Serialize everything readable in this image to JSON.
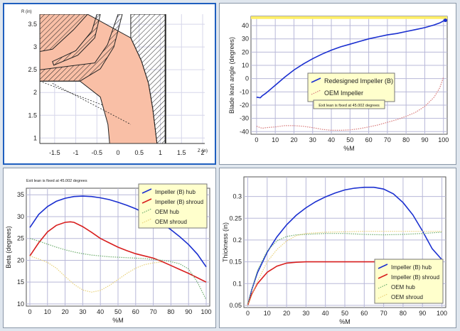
{
  "colors": {
    "hub": "#1a2fd0",
    "shroud": "#d81e1e",
    "oem_hub": "#6fae6f",
    "oem_shroud": "#e9d27a",
    "oem_lean": "#d87a7a",
    "grid": "#b8b8d8",
    "legend_bg": "#ffffcc",
    "meridional_fill": "#f9bfa6",
    "ref_band": "#ffee66"
  },
  "chart_data": [
    {
      "id": "meridional",
      "type": "scatter",
      "x_ticks": [
        "-1.5",
        "-1",
        "-0.5",
        "0",
        "0.5",
        "1",
        "1.5",
        "2"
      ],
      "y_ticks": [
        "1",
        "1.5",
        "2",
        "2.5",
        "3",
        "3.5"
      ],
      "xlabel": "Z (in)",
      "ylabel": "R (in)",
      "xlim": [
        -1.85,
        2.05
      ],
      "ylim": [
        0.88,
        3.72
      ],
      "regions": [
        {
          "name": "flow_passage",
          "fill": true,
          "points": [
            [
              -1.85,
              3.72
            ],
            [
              -0.72,
              3.72
            ],
            [
              0.3,
              3.2
            ],
            [
              0.55,
              2.7
            ],
            [
              0.72,
              2.2
            ],
            [
              0.82,
              1.65
            ],
            [
              0.92,
              0.88
            ],
            [
              -0.2,
              0.88
            ],
            [
              -0.24,
              1.3
            ],
            [
              -0.42,
              1.9
            ],
            [
              -0.9,
              2.25
            ],
            [
              -1.85,
              2.25
            ]
          ]
        },
        {
          "name": "shroud_hatch_outer",
          "fill": false,
          "points": [
            [
              -1.85,
              3.72
            ],
            [
              -0.72,
              3.72
            ],
            [
              -1.05,
              3.38
            ],
            [
              -1.55,
              2.95
            ],
            [
              -1.85,
              2.9
            ]
          ]
        },
        {
          "name": "splitter_hatch",
          "fill": false,
          "points": [
            [
              -0.5,
              3.72
            ],
            [
              -0.62,
              3.35
            ],
            [
              -1.0,
              2.92
            ],
            [
              -1.55,
              2.68
            ],
            [
              -1.52,
              2.6
            ],
            [
              -0.95,
              2.82
            ],
            [
              -0.55,
              3.2
            ],
            [
              -0.42,
              3.72
            ]
          ]
        },
        {
          "name": "hub_hatch",
          "fill": false,
          "points": [
            [
              -1.85,
              2.25
            ],
            [
              -0.9,
              2.25
            ],
            [
              -0.42,
              2.52
            ],
            [
              -0.1,
              3.0
            ],
            [
              0.1,
              3.72
            ],
            [
              0.0,
              3.72
            ],
            [
              -0.25,
              3.05
            ],
            [
              -0.55,
              2.65
            ],
            [
              -1.85,
              2.5
            ]
          ]
        },
        {
          "name": "casing_hatch",
          "fill": false,
          "points": [
            [
              0.3,
              3.2
            ],
            [
              0.55,
              2.7
            ],
            [
              0.72,
              2.2
            ],
            [
              0.82,
              1.65
            ],
            [
              0.92,
              0.88
            ],
            [
              1.12,
              0.88
            ],
            [
              1.12,
              3.72
            ],
            [
              0.3,
              3.72
            ]
          ]
        }
      ],
      "lines": [
        {
          "name": "trailing_edge_dashed",
          "points": [
            [
              -1.85,
              2.25
            ],
            [
              -0.35,
              1.72
            ]
          ]
        },
        {
          "name": "leading_edge_dashed",
          "points": [
            [
              -1.55,
              2.2
            ],
            [
              0.3,
              1.3
            ]
          ]
        },
        {
          "name": "exit_vertical",
          "points": [
            [
              1.12,
              0.88
            ],
            [
              1.12,
              3.72
            ]
          ]
        }
      ]
    },
    {
      "id": "blade_lean",
      "type": "line",
      "xlabel": "%M",
      "ylabel": "Blade lean angle (degrees)",
      "xlim": [
        -3,
        102
      ],
      "ylim": [
        -42,
        47
      ],
      "x_ticks": [
        "0",
        "10",
        "20",
        "30",
        "40",
        "50",
        "60",
        "70",
        "80",
        "90",
        "100"
      ],
      "y_ticks": [
        "-40",
        "-30",
        "-20",
        "-10",
        "0",
        "10",
        "20",
        "30",
        "40"
      ],
      "reference_band": [
        45,
        47
      ],
      "annotation": "Exit lean is fixed at 45.002 degrees",
      "series": [
        {
          "name": "Redesigned Impeller (B)",
          "color_key": "hub",
          "style": "solid",
          "x": [
            0,
            2,
            3,
            5,
            10,
            15,
            20,
            25,
            30,
            35,
            40,
            45,
            50,
            55,
            60,
            65,
            70,
            75,
            80,
            85,
            90,
            95,
            98,
            100,
            101
          ],
          "y": [
            -14,
            -14.5,
            -13,
            -11,
            -5,
            1,
            6.5,
            11,
            15,
            18.5,
            21.5,
            24,
            26,
            28,
            30,
            31.5,
            33,
            34,
            35.5,
            37,
            38.5,
            40.5,
            42,
            43.5,
            44
          ]
        },
        {
          "name": "OEM Impeller",
          "color_key": "oem_lean",
          "style": "dotted",
          "x": [
            0,
            3,
            5,
            10,
            15,
            20,
            25,
            30,
            35,
            40,
            45,
            50,
            55,
            60,
            65,
            70,
            75,
            80,
            85,
            90,
            95,
            98,
            100
          ],
          "y": [
            -36,
            -37.5,
            -37,
            -36.5,
            -35.5,
            -35.5,
            -36,
            -37,
            -38.3,
            -39,
            -39,
            -38.7,
            -37.8,
            -36.5,
            -35,
            -33,
            -31,
            -28.5,
            -25.5,
            -21,
            -14,
            -7,
            1
          ]
        }
      ]
    },
    {
      "id": "beta",
      "type": "line",
      "xlabel": "%M",
      "ylabel": "Beta (degrees)",
      "xlim": [
        -2,
        102
      ],
      "ylim": [
        9.5,
        36.5
      ],
      "x_ticks": [
        "0",
        "10",
        "20",
        "30",
        "40",
        "50",
        "60",
        "70",
        "80",
        "90",
        "100"
      ],
      "y_ticks": [
        "10",
        "15",
        "20",
        "25",
        "30",
        "35"
      ],
      "annotation": "Exit lean is fixed at 45.002 degrees",
      "series": [
        {
          "name": "Impeller (B) hub",
          "color_key": "hub",
          "style": "solid",
          "x": [
            0,
            5,
            10,
            15,
            20,
            25,
            30,
            35,
            40,
            45,
            50,
            55,
            60,
            65,
            70,
            75,
            80,
            85,
            90,
            95,
            100
          ],
          "y": [
            27.5,
            30.5,
            32.3,
            33.5,
            34.2,
            34.6,
            34.7,
            34.6,
            34.3,
            33.9,
            33.3,
            32.6,
            31.8,
            30.8,
            29.7,
            28.4,
            27.0,
            25.4,
            23.6,
            21.4,
            18.5
          ]
        },
        {
          "name": "Impeller (B) shroud",
          "color_key": "shroud",
          "style": "solid",
          "x": [
            0,
            5,
            10,
            15,
            20,
            23,
            25,
            30,
            35,
            40,
            45,
            50,
            55,
            60,
            65,
            70,
            75,
            80,
            85,
            90,
            95,
            100
          ],
          "y": [
            21,
            24,
            26.5,
            28,
            28.7,
            28.8,
            28.7,
            27.7,
            26.4,
            25,
            24,
            23,
            22.2,
            21.5,
            21,
            20.5,
            19.7,
            18.8,
            17.9,
            17,
            16,
            15
          ]
        },
        {
          "name": "OEM hub",
          "color_key": "oem_hub",
          "style": "dotted",
          "x": [
            0,
            5,
            10,
            15,
            20,
            25,
            30,
            35,
            40,
            45,
            50,
            55,
            60,
            65,
            70,
            75,
            80,
            85,
            90,
            95,
            100
          ],
          "y": [
            25,
            24.4,
            23.7,
            23,
            22.4,
            21.9,
            21.5,
            21.2,
            21,
            20.8,
            20.7,
            20.6,
            20.5,
            20.4,
            20.2,
            20,
            19.7,
            19.2,
            18,
            15,
            11
          ]
        },
        {
          "name": "OEM shroud",
          "color_key": "oem_shroud",
          "style": "dotted",
          "x": [
            0,
            5,
            10,
            15,
            20,
            25,
            30,
            35,
            40,
            45,
            50,
            55,
            60,
            65,
            70,
            75
          ],
          "y": [
            21,
            20.3,
            19.5,
            18.2,
            16.3,
            14.5,
            13.2,
            12.7,
            13.1,
            14.2,
            15.6,
            17,
            18.2,
            19,
            19.4,
            19.6
          ]
        }
      ]
    },
    {
      "id": "thickness",
      "type": "line",
      "xlabel": "%M",
      "ylabel": "Thickness (in)",
      "xlim": [
        -2,
        102
      ],
      "ylim": [
        0.045,
        0.345
      ],
      "x_ticks": [
        "0",
        "10",
        "20",
        "30",
        "40",
        "50",
        "60",
        "70",
        "80",
        "90",
        "100"
      ],
      "y_ticks": [
        "0.05",
        "0.1",
        "0.15",
        "0.2",
        "0.25",
        "0.3"
      ],
      "series": [
        {
          "name": "Impeller (B) hub",
          "color_key": "hub",
          "style": "solid",
          "x": [
            0,
            2,
            5,
            10,
            15,
            20,
            25,
            30,
            35,
            40,
            45,
            50,
            55,
            60,
            65,
            70,
            75,
            80,
            85,
            90,
            95,
            100
          ],
          "y": [
            0.05,
            0.085,
            0.125,
            0.172,
            0.207,
            0.235,
            0.257,
            0.274,
            0.288,
            0.299,
            0.308,
            0.315,
            0.319,
            0.321,
            0.321,
            0.317,
            0.306,
            0.286,
            0.258,
            0.221,
            0.18,
            0.155
          ]
        },
        {
          "name": "Impeller (B) shroud",
          "color_key": "shroud",
          "style": "solid",
          "x": [
            0,
            2,
            5,
            10,
            15,
            20,
            25,
            30,
            35,
            40,
            50,
            60,
            70,
            80,
            90,
            100
          ],
          "y": [
            0.05,
            0.075,
            0.1,
            0.126,
            0.14,
            0.147,
            0.149,
            0.15,
            0.15,
            0.15,
            0.15,
            0.15,
            0.15,
            0.15,
            0.15,
            0.15
          ]
        },
        {
          "name": "OEM hub",
          "color_key": "oem_hub",
          "style": "dotted",
          "x": [
            0,
            5,
            10,
            15,
            20,
            25,
            30,
            35,
            40,
            50,
            60,
            70,
            80,
            90,
            100
          ],
          "y": [
            0.055,
            0.13,
            0.175,
            0.198,
            0.208,
            0.212,
            0.213,
            0.214,
            0.215,
            0.215,
            0.213,
            0.212,
            0.213,
            0.215,
            0.218
          ]
        },
        {
          "name": "OEM shroud",
          "color_key": "oem_shroud",
          "style": "dotted",
          "x": [
            0,
            5,
            10,
            15,
            20,
            25,
            30,
            40,
            50,
            60,
            70,
            80,
            90,
            100
          ],
          "y": [
            0.05,
            0.105,
            0.15,
            0.178,
            0.198,
            0.21,
            0.215,
            0.218,
            0.219,
            0.22,
            0.22,
            0.22,
            0.22,
            0.22
          ]
        }
      ]
    }
  ]
}
